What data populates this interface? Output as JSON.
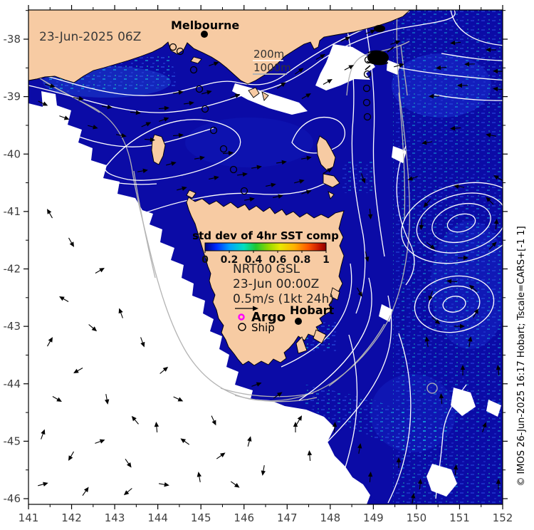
{
  "figure": {
    "date_label": "23-Jun-2025 06Z",
    "cities": {
      "melbourne": "Melbourne",
      "hobart": "Hobart"
    },
    "depth_legend": {
      "c200": "200m",
      "c1000": "1000m"
    },
    "colorbar": {
      "title": "std dev of 4hr SST comp",
      "ticks": [
        "0",
        "0.2",
        "0.4",
        "0.6",
        "0.8",
        "1"
      ]
    },
    "model_block": {
      "line1": "NRT00 GSL",
      "line2": "23-Jun 00:00Z",
      "line3": "0.5m/s (1kt 24h)"
    },
    "obs_legend": {
      "argo": "Argo",
      "ship": "Ship"
    },
    "credit": "© IMOS 26-Jun-2025 16:17 Hobart; Tscale=CARS+[-1 1]"
  },
  "axes": {
    "x_ticks": [
      "141",
      "142",
      "143",
      "144",
      "145",
      "146",
      "147",
      "148",
      "149",
      "150",
      "151",
      "152"
    ],
    "y_ticks": [
      "-38",
      "-39",
      "-40",
      "-41",
      "-42",
      "-43",
      "-44",
      "-45",
      "-46"
    ]
  },
  "colors": {
    "land": "#f7cba3",
    "ocean": "#0b0ba6",
    "cloud": "#ffffff",
    "sst_contour": "#ffffff",
    "bathy_contour": "#b4b4b4",
    "vector": "#000000",
    "argo_marker": "#ff00ff"
  },
  "chart_data": {
    "type": "heatmap",
    "title": "std dev of 4hr SST comp",
    "region": "Bass Strait and Tasmania",
    "x_axis": {
      "ticks": [
        141,
        142,
        143,
        144,
        145,
        146,
        147,
        148,
        149,
        150,
        151,
        152
      ],
      "range_deg_east": [
        141,
        152
      ]
    },
    "y_axis": {
      "ticks": [
        -38,
        -39,
        -40,
        -41,
        -42,
        -43,
        -44,
        -45,
        -46
      ],
      "range_deg_north": [
        -46.1,
        -37.5
      ]
    },
    "colorbar": {
      "label": "std dev of 4hr SST comp",
      "range": [
        0,
        1
      ],
      "ticks": [
        0,
        0.2,
        0.4,
        0.6,
        0.8,
        1
      ],
      "gradient": [
        "#000080",
        "#0028ff",
        "#00a0ff",
        "#00e0c0",
        "#20c830",
        "#90d800",
        "#e8e800",
        "#ffb000",
        "#ff5800",
        "#c81800",
        "#8b0000"
      ]
    },
    "analysis_time": "23-Jun-2025 06Z",
    "velocity_field": {
      "model": "NRT00 GSL",
      "time": "23-Jun 00:00Z",
      "vector_scale": "0.5m/s (1kt 24h)"
    },
    "depth_contours_m": [
      200,
      1000
    ],
    "observation_types": [
      "Argo",
      "Ship"
    ],
    "cities": [
      "Melbourne",
      "Hobart"
    ],
    "credit": "© IMOS 26-Jun-2025 16:17 Hobart; Tscale=CARS+[-1 1]"
  }
}
